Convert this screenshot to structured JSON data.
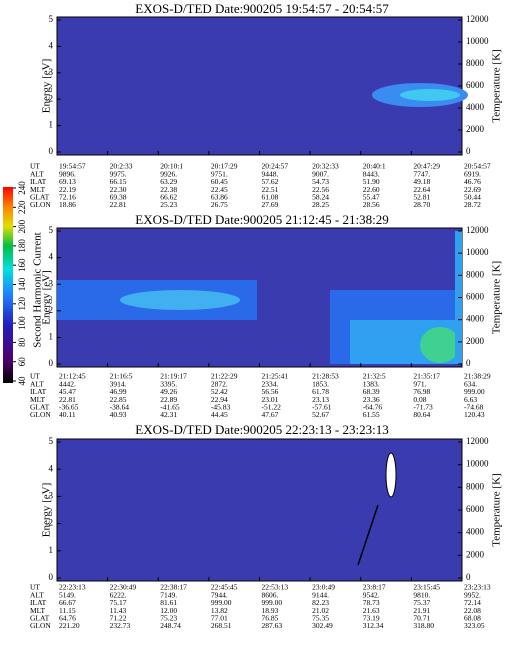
{
  "chart_data": [
    {
      "type": "spectrogram",
      "title": "EXOS-D/TED   Date:900205   19:54:57 - 20:54:57",
      "ylabel": "Energy [eV]",
      "y2label": "Temperature [K]",
      "ylim": [
        0,
        5
      ],
      "yticks": [
        0,
        1,
        2,
        3,
        4,
        5
      ],
      "y2lim": [
        0,
        12000
      ],
      "y2ticks": [
        0,
        2000,
        4000,
        6000,
        8000,
        10000,
        12000
      ],
      "table": {
        "labels": [
          "UT",
          "ALT",
          "ILAT",
          "MLT",
          "GLAT",
          "GLON"
        ],
        "rows": [
          [
            "19:54:57",
            "20:2:33",
            "20:10:1",
            "20:17:29",
            "20:24:57",
            "20:32:33",
            "20:40:1",
            "20:47:29",
            "20:54:57"
          ],
          [
            "9896.",
            "9975.",
            "9926.",
            "9751.",
            "9448.",
            "9007.",
            "8443.",
            "7747.",
            "6919."
          ],
          [
            "69.13",
            "66.15",
            "63.29",
            "60.45",
            "57.62",
            "54.73",
            "51.90",
            "49.18",
            "46.76"
          ],
          [
            "22.19",
            "22.30",
            "22.38",
            "22.45",
            "22.51",
            "22.56",
            "22.60",
            "22.64",
            "22.69"
          ],
          [
            "72.16",
            "69.38",
            "66.62",
            "63.86",
            "61.08",
            "58.24",
            "55.47",
            "52.81",
            "50.44"
          ],
          [
            "18.86",
            "22.81",
            "25.23",
            "26.75",
            "27.69",
            "28.25",
            "28.56",
            "28.70",
            "28.72"
          ]
        ]
      }
    },
    {
      "type": "spectrogram",
      "title": "EXOS-D/TED   Date:900205   21:12:45 - 21:38:29",
      "ylabel": "Energy [eV]",
      "y2label": "Temperature [K]",
      "ylim": [
        0,
        5
      ],
      "yticks": [
        0,
        1,
        2,
        3,
        4,
        5
      ],
      "y2lim": [
        0,
        12000
      ],
      "y2ticks": [
        0,
        2000,
        4000,
        6000,
        8000,
        10000,
        12000
      ],
      "table": {
        "labels": [
          "UT",
          "ALT",
          "ILAT",
          "MLT",
          "GLAT",
          "GLON"
        ],
        "rows": [
          [
            "21:12:45",
            "21:16:5",
            "21:19:17",
            "21:22:29",
            "21:25:41",
            "21:28:53",
            "21:32:5",
            "21:35:17",
            "21:38:29"
          ],
          [
            "4442.",
            "3914.",
            "3395.",
            "2872.",
            "2334.",
            "1853.",
            "1383.",
            "971.",
            "634."
          ],
          [
            "45.47",
            "46.99",
            "49.26",
            "52.42",
            "56.56",
            "61.78",
            "68.39",
            "76.98",
            "999.00"
          ],
          [
            "22.81",
            "22.85",
            "22.89",
            "22.94",
            "23.01",
            "23.13",
            "23.36",
            "0.08",
            "6.63"
          ],
          [
            "-36.65",
            "-38.64",
            "-41.65",
            "-45.83",
            "-51.22",
            "-57.61",
            "-64.76",
            "-71.73",
            "-74.68"
          ],
          [
            "40.11",
            "40.93",
            "42.31",
            "44.45",
            "47.67",
            "52.67",
            "61.55",
            "80.64",
            "120.43"
          ]
        ]
      }
    },
    {
      "type": "spectrogram",
      "title": "EXOS-D/TED   Date:900205   22:23:13 - 23:23:13",
      "ylabel": "Energy [eV]",
      "y2label": "Temperature [K]",
      "ylim": [
        0,
        5
      ],
      "yticks": [
        0,
        1,
        2,
        3,
        4,
        5
      ],
      "y2lim": [
        0,
        12000
      ],
      "y2ticks": [
        0,
        2000,
        4000,
        6000,
        8000,
        10000,
        12000
      ],
      "table": {
        "labels": [
          "UT",
          "ALT",
          "ILAT",
          "MLT",
          "GLAT",
          "GLON"
        ],
        "rows": [
          [
            "22:23:13",
            "22:30:49",
            "22:38:17",
            "22:45:45",
            "22:53:13",
            "23:0:49",
            "23:8:17",
            "23:15:45",
            "23:23:13"
          ],
          [
            "5149.",
            "6222.",
            "7149.",
            "7944.",
            "8606.",
            "9144.",
            "9542.",
            "9810.",
            "9952."
          ],
          [
            "66.67",
            "75.17",
            "81.61",
            "999.00",
            "999.00",
            "82.23",
            "78.73",
            "75.37",
            "72.14"
          ],
          [
            "11.15",
            "11.43",
            "12.00",
            "13.82",
            "18.93",
            "21.02",
            "21.63",
            "21.91",
            "22.08"
          ],
          [
            "64.76",
            "71.22",
            "75.23",
            "77.01",
            "76.85",
            "75.35",
            "73.19",
            "70.71",
            "68.08"
          ],
          [
            "221.20",
            "232.73",
            "248.74",
            "268.51",
            "287.63",
            "302.49",
            "312.34",
            "318.80",
            "323.05"
          ]
        ]
      }
    }
  ],
  "colorbar": {
    "label": "Second Harmonic Current",
    "lim": [
      40,
      240
    ],
    "ticks": [
      40,
      60,
      80,
      100,
      120,
      140,
      160,
      180,
      200,
      220,
      240
    ]
  }
}
